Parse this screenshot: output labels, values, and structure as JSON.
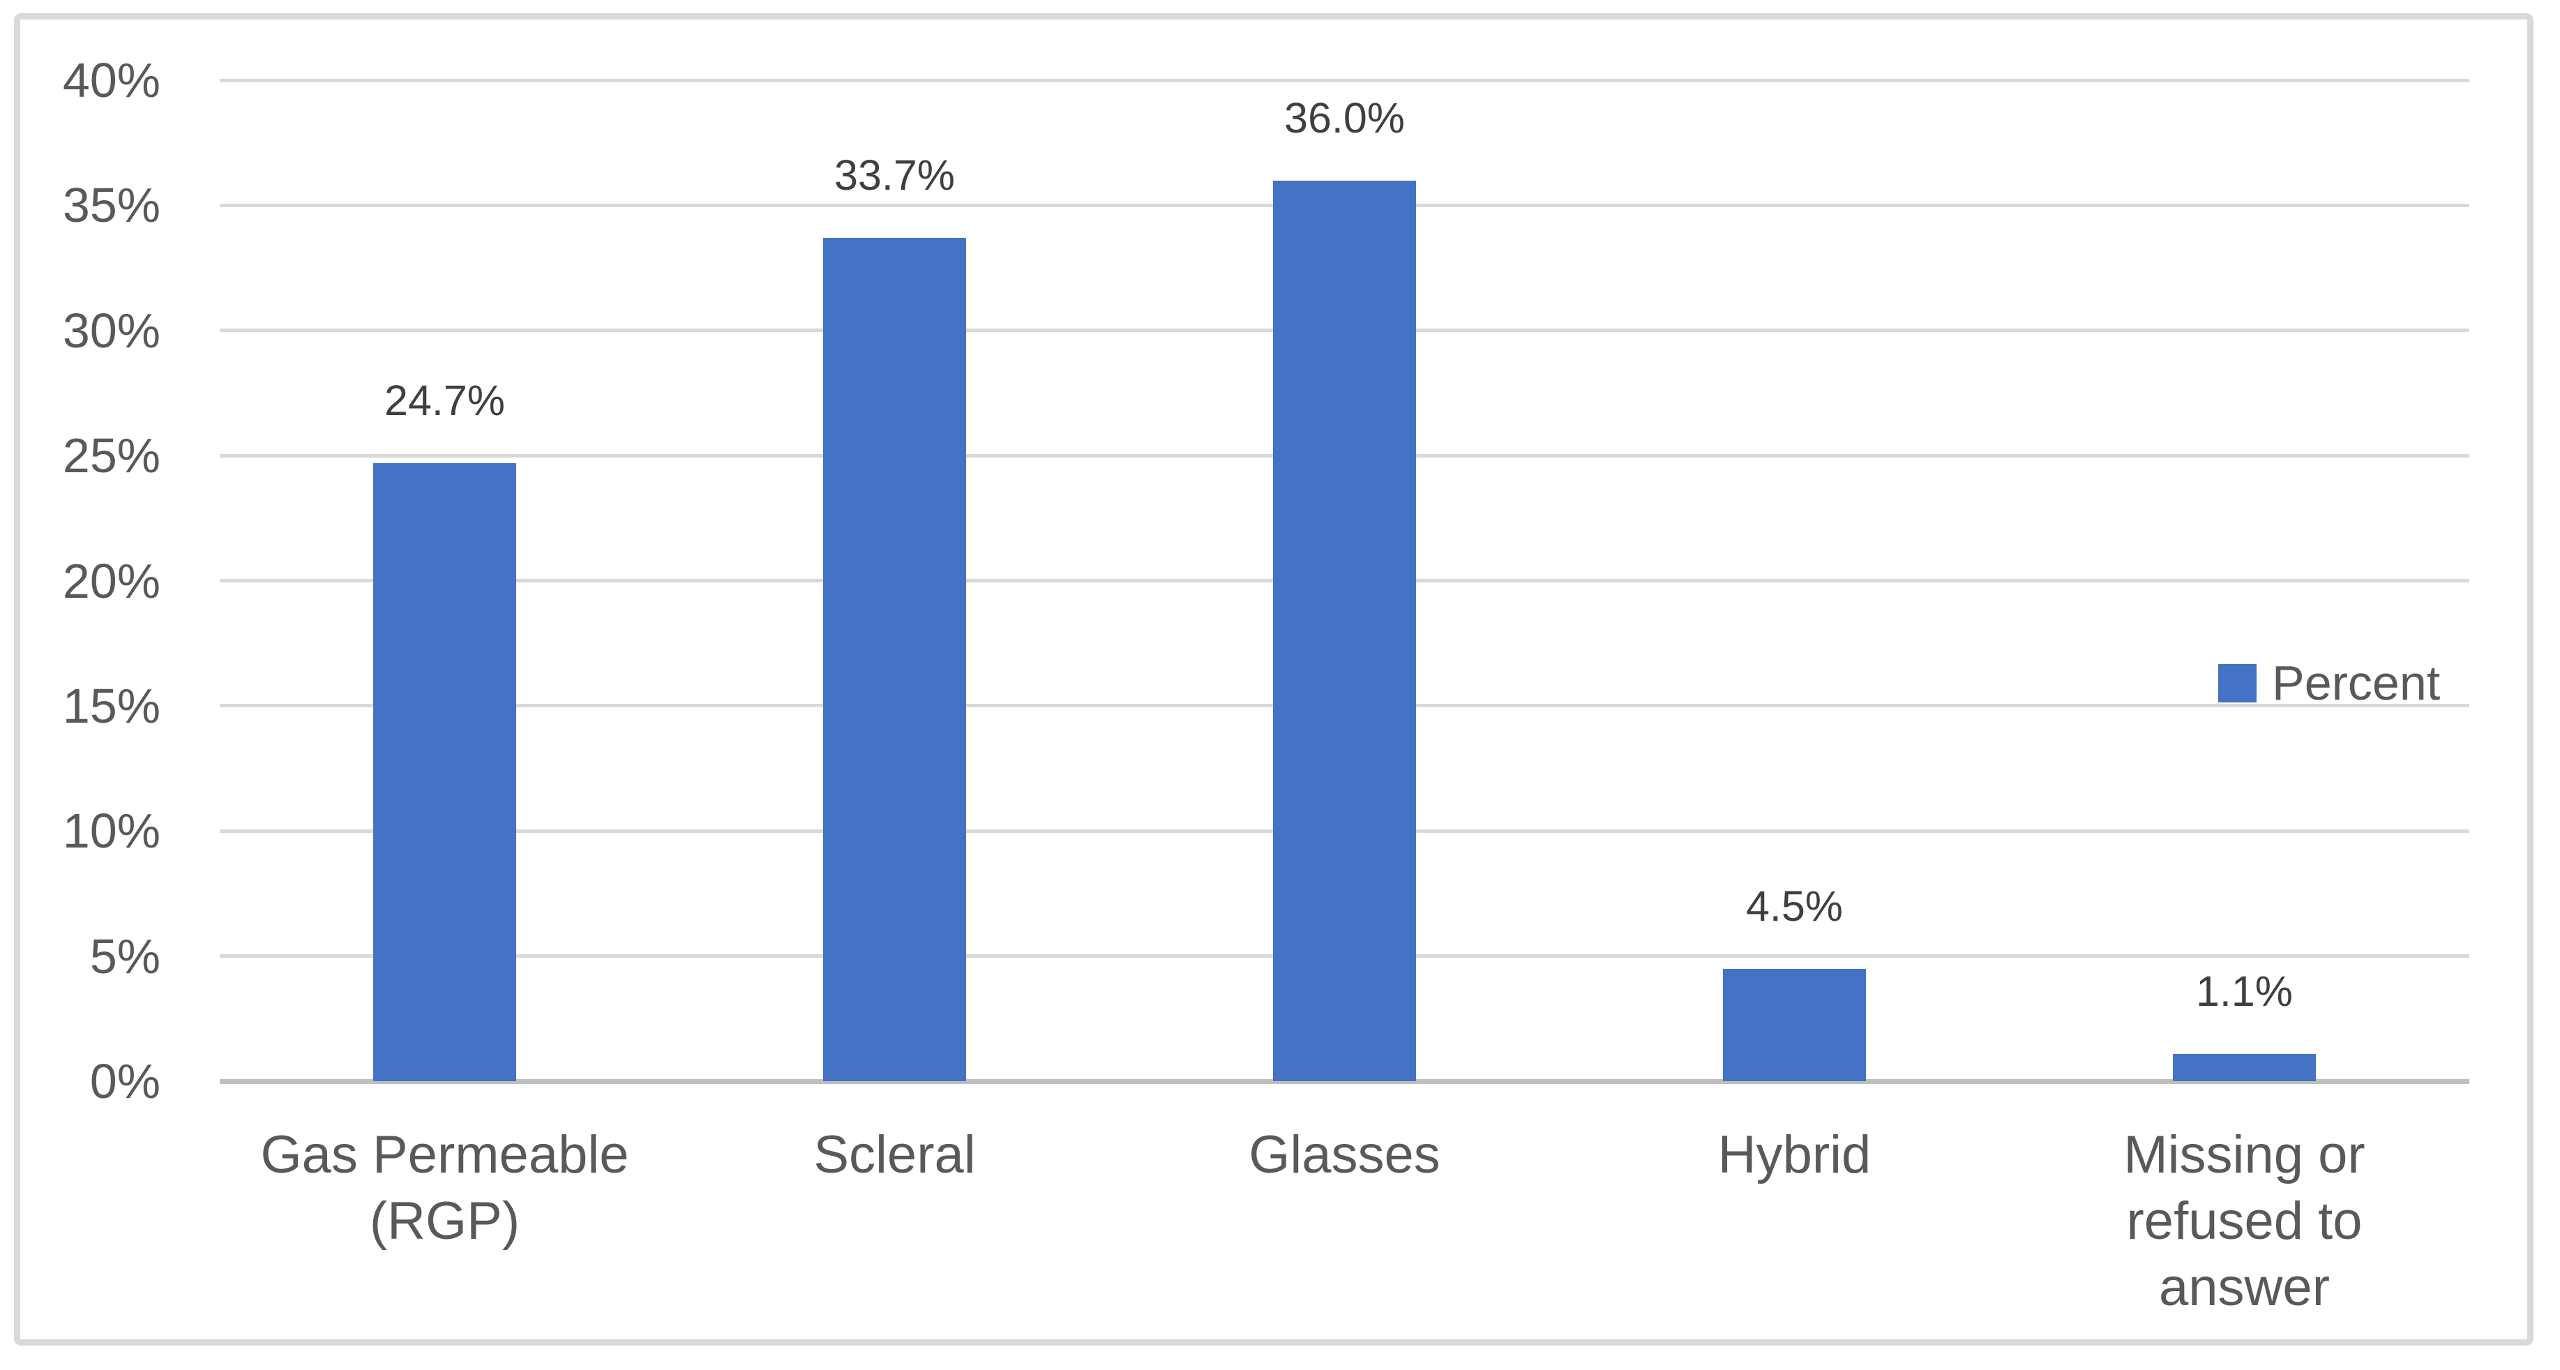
{
  "chart_data": {
    "type": "bar",
    "title": "",
    "categories": [
      "Gas Permeable (RGP)",
      "Scleral",
      "Glasses",
      "Hybrid",
      "Missing or refused to answer"
    ],
    "category_label_lines": [
      [
        "Gas Permeable",
        "(RGP)"
      ],
      [
        "Scleral"
      ],
      [
        "Glasses"
      ],
      [
        "Hybrid"
      ],
      [
        "Missing or",
        "refused to",
        "answer"
      ]
    ],
    "series": [
      {
        "name": "Percent",
        "values": [
          24.7,
          33.7,
          36.0,
          4.5,
          1.1
        ]
      }
    ],
    "data_labels": [
      "24.7%",
      "33.7%",
      "36.0%",
      "4.5%",
      "1.1%"
    ],
    "ylim": [
      0,
      40
    ],
    "y_tick_step": 5,
    "y_tick_labels": [
      "0%",
      "5%",
      "10%",
      "15%",
      "20%",
      "25%",
      "30%",
      "35%",
      "40%"
    ],
    "grid": true,
    "legend": {
      "label": "Percent",
      "position": "right-middle",
      "marker": "square"
    },
    "colors": {
      "bar": "#4472C4",
      "gridline": "#D9D9D9",
      "axis_line": "#BFBFBF",
      "tick_label": "#595959",
      "category_label": "#595959",
      "data_label": "#3F3F3F",
      "legend_label": "#595959",
      "chart_border": "#D9D9D9",
      "background": "#FFFFFF"
    }
  }
}
